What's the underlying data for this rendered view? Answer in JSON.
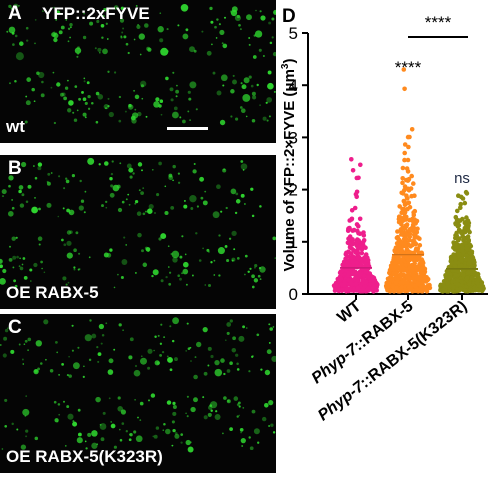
{
  "panels": {
    "a": {
      "letter": "A",
      "title": "YFP::2xFYVE",
      "caption": "wt"
    },
    "b": {
      "letter": "B",
      "caption": "OE RABX-5"
    },
    "c": {
      "letter": "C",
      "caption": "OE RABX-5(K323R)"
    }
  },
  "colors": {
    "micrograph_background": "#050505",
    "puncta": "#2fd62f",
    "scale_bar": "#ffffff"
  },
  "chart_data": {
    "type": "scatter",
    "panel_letter": "D",
    "ylabel": "Volume of YFP::2×FYVE (μm",
    "ylabel_superscript": "3",
    "ylabel_close": ")",
    "ylim": [
      0,
      5
    ],
    "yticks": [
      "0",
      "1",
      "2",
      "3",
      "4",
      "5"
    ],
    "categories": [
      "WT",
      "Phyp-7::RABX-5",
      "Phyp-7::RABX-5(K323R)"
    ],
    "category_italic_part": [
      "",
      "Phyp-7",
      "Phyp-7"
    ],
    "category_plain_part": [
      "WT",
      "::RABX-5",
      "::RABX-5(K323R)"
    ],
    "series": [
      {
        "color": "#ee1e8c",
        "mean": 0.5,
        "max": 2.58,
        "n": 420
      },
      {
        "color": "#ff8a1e",
        "mean": 0.75,
        "max": 4.3,
        "n": 520
      },
      {
        "color": "#8a8d12",
        "mean": 0.48,
        "max": 1.95,
        "n": 560
      }
    ],
    "annotations": [
      {
        "text": "****",
        "category": 1,
        "note": "above Phyp-7::RABX-5"
      },
      {
        "text": "ns",
        "category": 2,
        "note": "above Phyp-7::RABX-5(K323R)"
      },
      {
        "text": "****",
        "bracket": [
          1,
          2
        ]
      }
    ],
    "grid": false,
    "legend": "none"
  }
}
